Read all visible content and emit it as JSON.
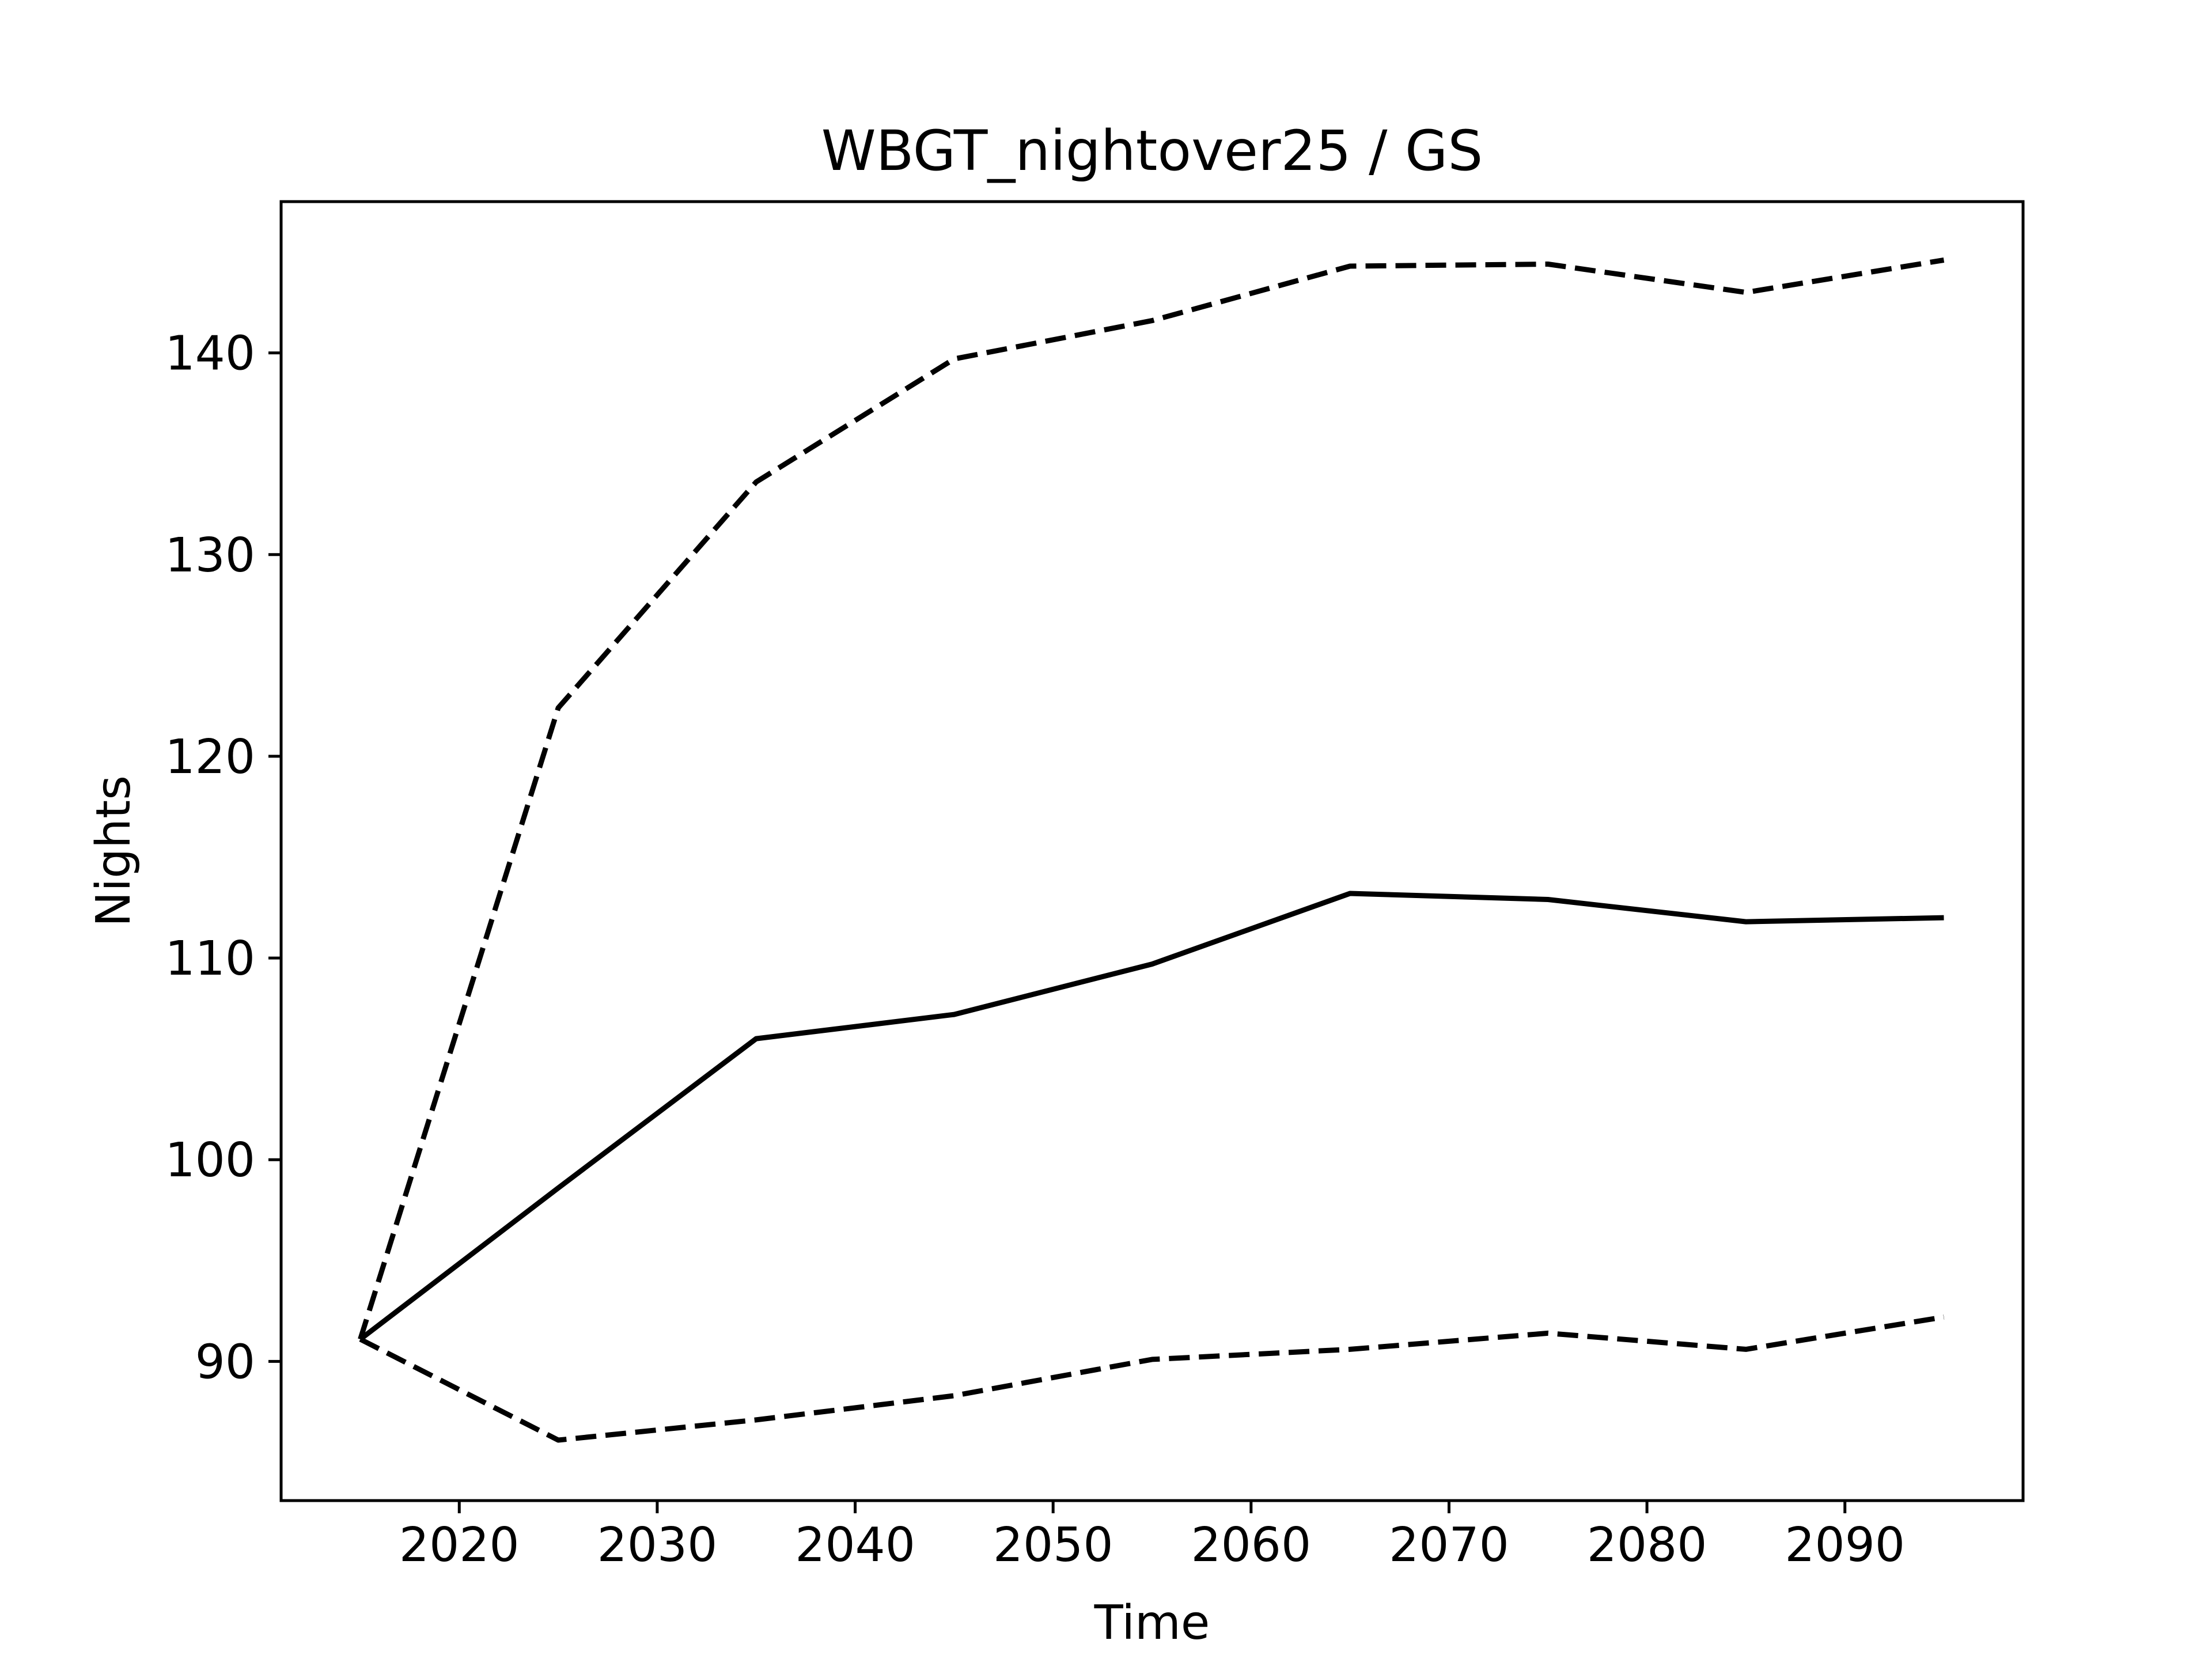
{
  "chart_data": {
    "type": "line",
    "title": "WBGT_nightover25 / GS",
    "xlabel": "Time",
    "ylabel": "Nights",
    "x": [
      2015,
      2025,
      2035,
      2045,
      2055,
      2065,
      2075,
      2085,
      2095
    ],
    "xlim": [
      2011,
      2099
    ],
    "ylim": [
      83.1,
      147.5
    ],
    "xticks": [
      2020,
      2030,
      2040,
      2050,
      2060,
      2070,
      2080,
      2090
    ],
    "xtick_labels": [
      "2020",
      "2030",
      "2040",
      "2050",
      "2060",
      "2070",
      "2080",
      "2090"
    ],
    "yticks": [
      90,
      100,
      110,
      120,
      130,
      140
    ],
    "ytick_labels": [
      "90",
      "100",
      "110",
      "120",
      "130",
      "140"
    ],
    "grid": false,
    "series": [
      {
        "values": [
          91.1,
          122.4,
          133.6,
          139.7,
          141.6,
          144.3,
          144.4,
          143.0,
          144.6
        ],
        "line_style": "dashed",
        "color": "#000000"
      },
      {
        "values": [
          91.1,
          98.6,
          106.0,
          107.2,
          109.7,
          113.2,
          112.9,
          111.8,
          112.0
        ],
        "line_style": "solid",
        "color": "#000000"
      },
      {
        "values": [
          91.1,
          86.1,
          87.1,
          88.3,
          90.1,
          90.6,
          91.4,
          90.6,
          92.2
        ],
        "line_style": "dashed",
        "color": "#000000"
      }
    ]
  }
}
